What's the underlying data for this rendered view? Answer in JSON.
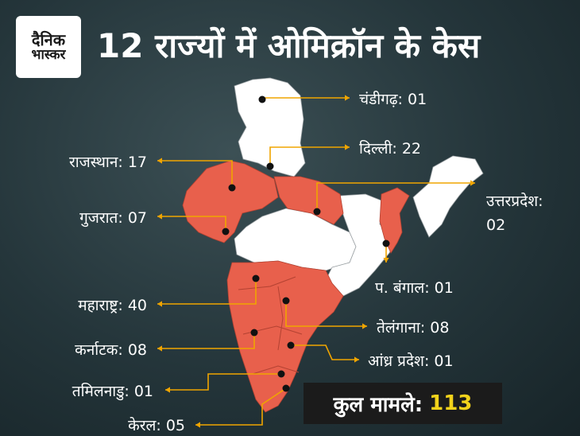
{
  "brand": {
    "logo_line1": "दैनिक",
    "logo_line2": "भास्कर"
  },
  "title": "12 राज्यों में ओमिक्रॉन के केस",
  "colors": {
    "affected": "#e8604c",
    "unaffected": "#ffffff",
    "leader": "#f0a500",
    "total_value": "#f2d21b",
    "background": "#24353a"
  },
  "states": [
    {
      "name": "चंडीगढ़",
      "cases": "01"
    },
    {
      "name": "दिल्ली",
      "cases": "22"
    },
    {
      "name": "उत्तरप्रदेश",
      "cases": "02"
    },
    {
      "name": "राजस्थान",
      "cases": "17"
    },
    {
      "name": "गुजरात",
      "cases": "07"
    },
    {
      "name": "प. बंगाल",
      "cases": "01"
    },
    {
      "name": "महाराष्ट्र",
      "cases": "40"
    },
    {
      "name": "तेलंगाना",
      "cases": "08"
    },
    {
      "name": "कर्नाटक",
      "cases": "08"
    },
    {
      "name": "आंध्र प्रदेश",
      "cases": "01"
    },
    {
      "name": "तमिलनाडु",
      "cases": "01"
    },
    {
      "name": "केरल",
      "cases": "05"
    }
  ],
  "total": {
    "label": "कुल मामले:",
    "value": "113"
  }
}
